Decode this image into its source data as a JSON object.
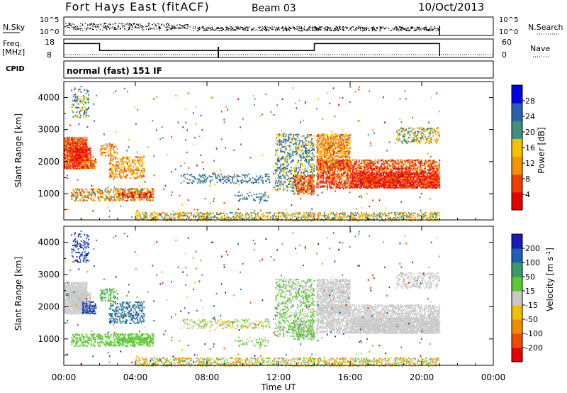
{
  "header": {
    "station": "Fort Hays East (fitACF)",
    "beam": "Beam 03",
    "date": "10/Oct/2013"
  },
  "mode_text": "normal (fast) 151 IF",
  "top_panels": {
    "nsky_label": "N.Sky",
    "nsky_ticks": [
      "10^5",
      "10^0"
    ],
    "nsearch_label": "N.Search",
    "nsearch_ticks": [
      "10^5",
      "10^0"
    ],
    "freq_label": "Freq.",
    "freq_unit": "[MHz]",
    "freq_ticks": [
      18,
      8
    ],
    "nave_label": "Nave",
    "nave_ticks": [
      60,
      0
    ],
    "cpid_label": "CPID"
  },
  "chart_data": [
    {
      "type": "line",
      "name": "frequency",
      "ylim": [
        8,
        18
      ],
      "x_hours": [
        0,
        2,
        2,
        14,
        14,
        21,
        21
      ],
      "values": [
        16,
        16,
        11.5,
        11.5,
        16,
        16,
        8
      ]
    },
    {
      "type": "heatmap",
      "name": "power",
      "xlabel": "",
      "ylabel": "Slant Range [km]",
      "xlim": [
        0,
        24
      ],
      "ylim": [
        180,
        4500
      ],
      "colorbar_label": "Power [dB]",
      "colorbar_ticks": [
        4,
        8,
        12,
        16,
        20,
        24,
        28
      ],
      "colorbar_range": [
        0,
        32
      ],
      "colors": [
        "#0000e6",
        "#2a5fb0",
        "#3f8f7a",
        "#f6c000",
        "#f59200",
        "#f04000",
        "#e60000"
      ]
    },
    {
      "type": "heatmap",
      "name": "velocity",
      "xlabel": "Time UT",
      "ylabel": "Slant Range [km]",
      "xlim": [
        0,
        24
      ],
      "ylim": [
        180,
        4500
      ],
      "colorbar_label": "Velocity [m s",
      "colorbar_label_sup": "-1",
      "colorbar_ticks": [
        200,
        100,
        50,
        15,
        -15,
        -50,
        -100,
        -200
      ],
      "colors": [
        "#1a1ab4",
        "#1f5fb8",
        "#3a9a6a",
        "#5cc832",
        "#c8c8c8",
        "#f0c000",
        "#f08c00",
        "#f04a00",
        "#e60000"
      ]
    }
  ],
  "axes": {
    "y_ticks": [
      1000,
      2000,
      3000,
      4000
    ],
    "x_ticks": [
      "00:00",
      "04:00",
      "08:00",
      "12:00",
      "16:00",
      "20:00",
      "00:00"
    ]
  },
  "colors": {
    "frame": "#000000",
    "background": "#ffffff"
  }
}
